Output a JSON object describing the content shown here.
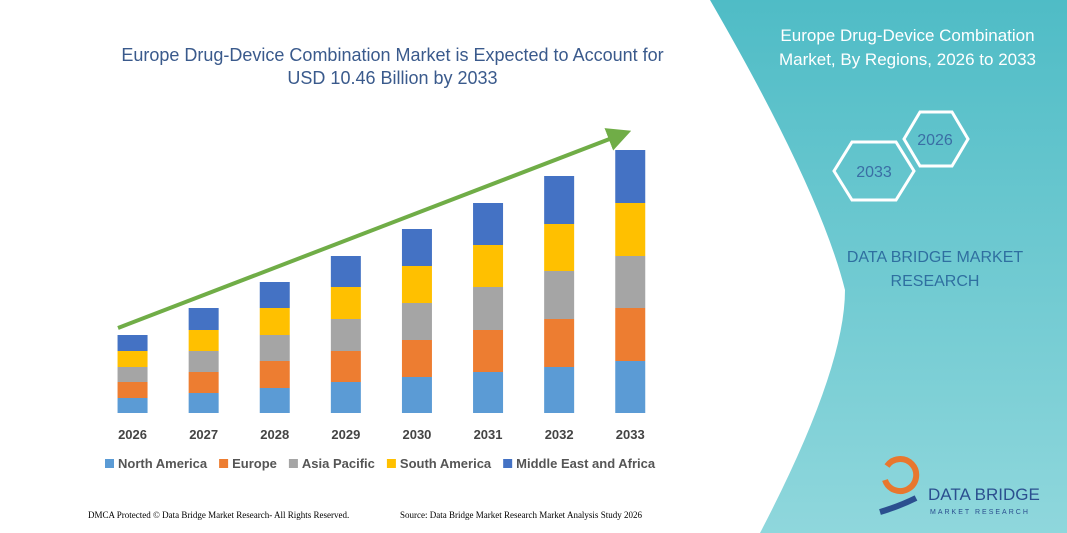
{
  "chart_data": {
    "type": "stacked-bar",
    "title": "Europe Drug-Device Combination Market is Expected to Account for USD 10.46 Billion by 2033",
    "categories": [
      "2026",
      "2027",
      "2028",
      "2029",
      "2030",
      "2031",
      "2032",
      "2033"
    ],
    "series": [
      {
        "name": "North America",
        "color": "#5b9bd5",
        "values": [
          15,
          20,
          25,
          31,
          36,
          41,
          46,
          52
        ]
      },
      {
        "name": "Europe",
        "color": "#ed7d31",
        "values": [
          16,
          21,
          27,
          31,
          37,
          42,
          48,
          53
        ]
      },
      {
        "name": "Asia Pacific",
        "color": "#a5a5a5",
        "values": [
          15,
          21,
          26,
          32,
          37,
          43,
          48,
          52
        ]
      },
      {
        "name": "South America",
        "color": "#ffc000",
        "values": [
          16,
          21,
          27,
          32,
          37,
          42,
          47,
          53
        ]
      },
      {
        "name": "Middle East and Africa",
        "color": "#4472c4",
        "values": [
          16,
          22,
          26,
          31,
          37,
          42,
          48,
          53
        ]
      }
    ],
    "ylim": [
      0,
      263
    ],
    "legend": "bottom",
    "trend_color": "#70ad47"
  },
  "panel": {
    "title": "Europe Drug-Device Combination Market, By Regions, 2026 to 2033",
    "hexagons": [
      "2026",
      "2033"
    ],
    "brand": "DATA BRIDGE MARKET RESEARCH"
  },
  "footer": {
    "left": "DMCA Protected © Data Bridge Market Research- All Rights Reserved.",
    "right": "Source: Data Bridge Market Research Market Analysis Study 2026"
  },
  "logo": {
    "name": "DATA BRIDGE",
    "tagline": "MARKET RESEARCH"
  }
}
